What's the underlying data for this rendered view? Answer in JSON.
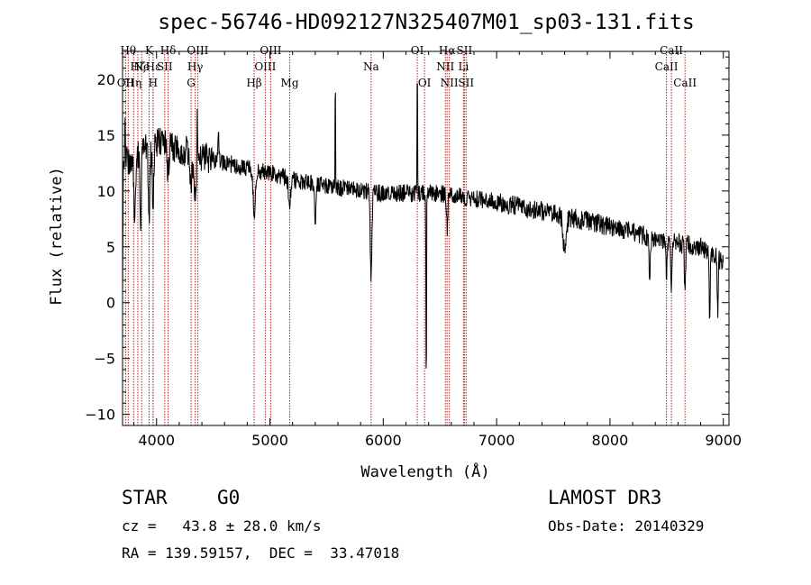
{
  "info": {
    "object_class": "STAR",
    "subclass": "G0",
    "survey": "LAMOST DR3",
    "redshift": "cz =   43.8 ± 28.0 km/s",
    "obs_date": "Obs-Date: 20140329",
    "coords": "RA = 139.59157,  DEC =  33.47018"
  },
  "chart_data": {
    "type": "line",
    "title": "spec-56746-HD092127N325407M01_sp03-131.fits",
    "xlabel": "Wavelength (Å)",
    "ylabel": "Flux (relative)",
    "xlim": [
      3700,
      9050
    ],
    "ylim": [
      -11,
      22.5
    ],
    "xticks": [
      4000,
      5000,
      6000,
      7000,
      8000,
      9000
    ],
    "yticks": [
      -10,
      -5,
      0,
      5,
      10,
      15,
      20
    ],
    "line_color": "#000000",
    "marker_color": "#b22222",
    "spectral_lines": [
      {
        "wave": 3727,
        "label": "OII",
        "row": 2
      },
      {
        "wave": 3750,
        "label": "Hθ",
        "row": 0
      },
      {
        "wave": 3798,
        "label": "Hη",
        "row": 2
      },
      {
        "wave": 3835,
        "label": "Hζ",
        "row": 1
      },
      {
        "wave": 3869,
        "label": "Ne",
        "row": 1
      },
      {
        "wave": 3934,
        "label": "K",
        "row": 0
      },
      {
        "wave": 3969,
        "label": "H",
        "row": 2
      },
      {
        "wave": 3970,
        "label": "Hε",
        "row": 1
      },
      {
        "wave": 4072,
        "label": "SII",
        "row": 1
      },
      {
        "wave": 4102,
        "label": "Hδ",
        "row": 0
      },
      {
        "wave": 4305,
        "label": "G",
        "row": 2
      },
      {
        "wave": 4341,
        "label": "Hγ",
        "row": 1
      },
      {
        "wave": 4363,
        "label": "OIII",
        "row": 0
      },
      {
        "wave": 4861,
        "label": "Hβ",
        "row": 2
      },
      {
        "wave": 4959,
        "label": "OIII",
        "row": 1
      },
      {
        "wave": 5007,
        "label": "OIII",
        "row": 0
      },
      {
        "wave": 5175,
        "label": "Mg",
        "row": 2
      },
      {
        "wave": 5893,
        "label": "Na",
        "row": 1
      },
      {
        "wave": 6300,
        "label": "OI",
        "row": 0
      },
      {
        "wave": 6364,
        "label": "OI",
        "row": 2
      },
      {
        "wave": 6548,
        "label": "NII",
        "row": 1
      },
      {
        "wave": 6563,
        "label": "Hα",
        "row": 0
      },
      {
        "wave": 6583,
        "label": "NII",
        "row": 2
      },
      {
        "wave": 6708,
        "label": "Li",
        "row": 1
      },
      {
        "wave": 6716,
        "label": "SII",
        "row": 0
      },
      {
        "wave": 6731,
        "label": "SII",
        "row": 2
      },
      {
        "wave": 8498,
        "label": "CaII",
        "row": 1
      },
      {
        "wave": 8542,
        "label": "CaII",
        "row": 0
      },
      {
        "wave": 8662,
        "label": "CaII",
        "row": 2
      }
    ],
    "continuum": [
      [
        3700,
        12.5
      ],
      [
        3800,
        13.0
      ],
      [
        4000,
        14.3
      ],
      [
        4100,
        14.2
      ],
      [
        4400,
        13.0
      ],
      [
        4700,
        12.3
      ],
      [
        5000,
        11.6
      ],
      [
        5200,
        11.0
      ],
      [
        5500,
        10.5
      ],
      [
        5800,
        10.0
      ],
      [
        6000,
        9.8
      ],
      [
        6300,
        9.8
      ],
      [
        6500,
        9.8
      ],
      [
        7000,
        9.0
      ],
      [
        7500,
        8.0
      ],
      [
        8000,
        6.8
      ],
      [
        8500,
        5.5
      ],
      [
        8800,
        5.0
      ],
      [
        9050,
        3.2
      ]
    ],
    "absorption": [
      {
        "wave": 3700,
        "depth": 12,
        "width": 4
      },
      {
        "wave": 3808,
        "depth": 6,
        "width": 10
      },
      {
        "wave": 3860,
        "depth": 7,
        "width": 8
      },
      {
        "wave": 3934,
        "depth": 6,
        "width": 10
      },
      {
        "wave": 3969,
        "depth": 5,
        "width": 10
      },
      {
        "wave": 4102,
        "depth": 3,
        "width": 10
      },
      {
        "wave": 4305,
        "depth": 3,
        "width": 14
      },
      {
        "wave": 4341,
        "depth": 4,
        "width": 12
      },
      {
        "wave": 4861,
        "depth": 4,
        "width": 14
      },
      {
        "wave": 5175,
        "depth": 2,
        "width": 16
      },
      {
        "wave": 5400,
        "depth": 3,
        "width": 10
      },
      {
        "wave": 5893,
        "depth": 8,
        "width": 10
      },
      {
        "wave": 6380,
        "depth": 19,
        "width": 4
      },
      {
        "wave": 6563,
        "depth": 3,
        "width": 8
      },
      {
        "wave": 7600,
        "depth": 3,
        "width": 20
      },
      {
        "wave": 8350,
        "depth": 3,
        "width": 10
      },
      {
        "wave": 8498,
        "depth": 3,
        "width": 8
      },
      {
        "wave": 8542,
        "depth": 4,
        "width": 8
      },
      {
        "wave": 8662,
        "depth": 4,
        "width": 8
      },
      {
        "wave": 8880,
        "depth": 6,
        "width": 6
      },
      {
        "wave": 8950,
        "depth": 5,
        "width": 6
      }
    ],
    "emission": [
      {
        "wave": 3723,
        "height": 3,
        "width": 6
      },
      {
        "wave": 4360,
        "height": 4,
        "width": 4
      },
      {
        "wave": 4545,
        "height": 3,
        "width": 6
      },
      {
        "wave": 5577,
        "height": 11,
        "width": 3
      },
      {
        "wave": 6300,
        "height": 12,
        "width": 3
      },
      {
        "wave": 6384,
        "height": 4,
        "width": 3
      }
    ]
  }
}
